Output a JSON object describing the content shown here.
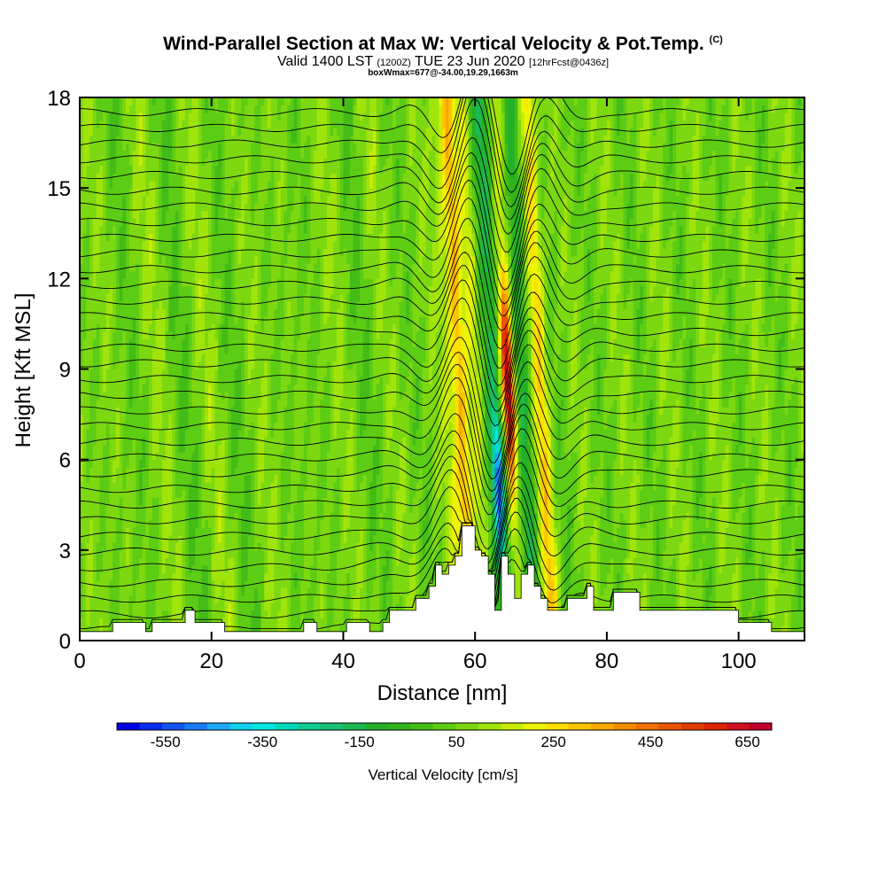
{
  "header": {
    "title": "Wind-Parallel Section at Max W: Vertical Velocity & Pot.Temp.",
    "title_tag": "(C)",
    "valid_prefix": "Valid 1400 LST",
    "valid_utc": "(1200Z)",
    "valid_date": "TUE 23 Jun 2020",
    "forecast": "[12hrFcst@0436z]",
    "boxinfo": "boxWmax=677@-34.00,19.29,1663m"
  },
  "chart_data": {
    "type": "heatmap",
    "xlabel": "Distance [nm]",
    "ylabel": "Height [Kft MSL]",
    "xlim": [
      0,
      110
    ],
    "ylim": [
      0,
      18
    ],
    "xticks": [
      0,
      20,
      40,
      60,
      80,
      100
    ],
    "yticks": [
      0,
      3,
      6,
      9,
      12,
      15,
      18
    ],
    "colorbar_label": "Vertical Velocity [cm/s]",
    "colorbar_ticks": [
      -550,
      -350,
      -150,
      50,
      250,
      450,
      650
    ],
    "colorbar_levels": [
      -650,
      -600,
      -550,
      -500,
      -450,
      -400,
      -350,
      -300,
      -250,
      -200,
      -150,
      -100,
      -50,
      0,
      50,
      100,
      150,
      200,
      250,
      300,
      350,
      400,
      450,
      500,
      550,
      600,
      650,
      700
    ],
    "colorbar_colors": [
      "#0000e8",
      "#0a2cf0",
      "#1254f0",
      "#1a7cf4",
      "#1ca8f4",
      "#10d0f0",
      "#00e8e0",
      "#00dcb8",
      "#10cc90",
      "#18c070",
      "#1cb850",
      "#22b028",
      "#30b41c",
      "#44bc18",
      "#5ccc14",
      "#7cd810",
      "#a0e40c",
      "#c8ec08",
      "#ecf404",
      "#fce000",
      "#fcc400",
      "#f8a800",
      "#f48c00",
      "#f07000",
      "#ec5400",
      "#e43c00",
      "#dc2400",
      "#d0101c",
      "#c00028"
    ],
    "max_w": 677,
    "w_columns": [
      {
        "x": 63.2,
        "w": -560
      },
      {
        "x": 62.0,
        "w": -120
      },
      {
        "x": 60.2,
        "w": 120
      },
      {
        "x": 58.0,
        "w": 300
      },
      {
        "x": 56.3,
        "w": 80
      },
      {
        "x": 65.3,
        "w": 677
      },
      {
        "x": 67.6,
        "w": -220
      },
      {
        "x": 70.3,
        "w": 240
      },
      {
        "x": 74.0,
        "w": -20
      }
    ],
    "terrain": [
      [
        0,
        0.3
      ],
      [
        5,
        0.3
      ],
      [
        5,
        0.6
      ],
      [
        10,
        0.6
      ],
      [
        10,
        0.3
      ],
      [
        11,
        0.3
      ],
      [
        11,
        0.6
      ],
      [
        16,
        0.6
      ],
      [
        16,
        1.0
      ],
      [
        17.5,
        1.0
      ],
      [
        17.5,
        0.6
      ],
      [
        22,
        0.6
      ],
      [
        22,
        0.3
      ],
      [
        34,
        0.3
      ],
      [
        34,
        0.6
      ],
      [
        36,
        0.6
      ],
      [
        36,
        0.3
      ],
      [
        40.5,
        0.3
      ],
      [
        40.5,
        0.6
      ],
      [
        44,
        0.6
      ],
      [
        44,
        0.3
      ],
      [
        46,
        0.3
      ],
      [
        46,
        0.6
      ],
      [
        47,
        0.6
      ],
      [
        47,
        1.0
      ],
      [
        51,
        1.0
      ],
      [
        51,
        1.4
      ],
      [
        53,
        1.4
      ],
      [
        53,
        1.8
      ],
      [
        54,
        1.8
      ],
      [
        54,
        2.5
      ],
      [
        55,
        2.5
      ],
      [
        55,
        2.2
      ],
      [
        56,
        2.2
      ],
      [
        56,
        2.5
      ],
      [
        57,
        2.5
      ],
      [
        57,
        2.8
      ],
      [
        58,
        2.8
      ],
      [
        58,
        3.8
      ],
      [
        60,
        3.8
      ],
      [
        60,
        3.0
      ],
      [
        61,
        3.0
      ],
      [
        61,
        2.8
      ],
      [
        62,
        2.8
      ],
      [
        62,
        2.2
      ],
      [
        63,
        2.2
      ],
      [
        63,
        1.0
      ],
      [
        64,
        1.0
      ],
      [
        64,
        2.8
      ],
      [
        65,
        2.8
      ],
      [
        65,
        2.2
      ],
      [
        66,
        2.2
      ],
      [
        66,
        1.4
      ],
      [
        67,
        1.4
      ],
      [
        67,
        2.2
      ],
      [
        68,
        2.2
      ],
      [
        68,
        2.5
      ],
      [
        69,
        2.5
      ],
      [
        69,
        1.8
      ],
      [
        70,
        1.8
      ],
      [
        70,
        1.4
      ],
      [
        71,
        1.4
      ],
      [
        71,
        1.0
      ],
      [
        74,
        1.0
      ],
      [
        74,
        1.4
      ],
      [
        77,
        1.4
      ],
      [
        77,
        1.8
      ],
      [
        78,
        1.8
      ],
      [
        78,
        1.0
      ],
      [
        81,
        1.0
      ],
      [
        81,
        1.6
      ],
      [
        85,
        1.6
      ],
      [
        85,
        1.0
      ],
      [
        100,
        1.0
      ],
      [
        100,
        0.6
      ],
      [
        105,
        0.6
      ],
      [
        105,
        0.3
      ],
      [
        110,
        0.3
      ]
    ],
    "isentrope_count": 34,
    "isentrope_base": 0.35,
    "isentrope_spacing": 0.52
  }
}
